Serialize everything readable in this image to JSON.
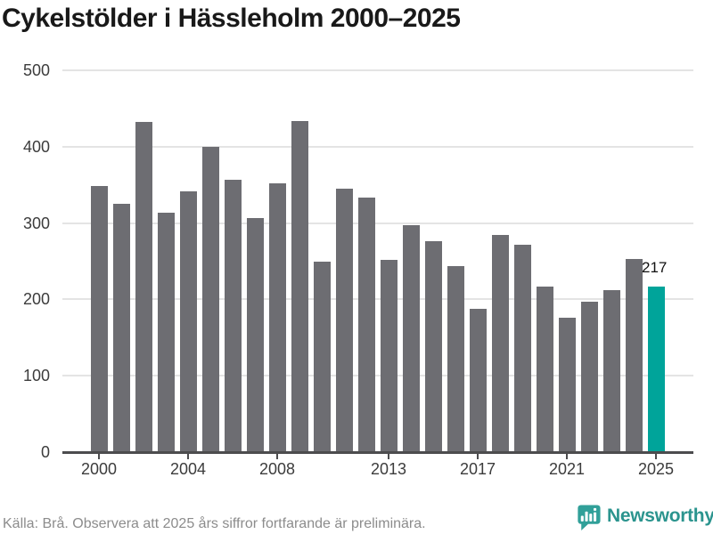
{
  "page": {
    "title": "Cykelstölder i Hässleholm 2000–2025",
    "footer": {
      "source": "Källa: Brå. Observera att 2025 års siffror fortfarande är preliminära.",
      "brand": "Newsworthy"
    }
  },
  "chart_data": {
    "type": "bar",
    "title": "Cykelstölder i Hässleholm 2000–2025",
    "categories": [
      2000,
      2001,
      2002,
      2003,
      2004,
      2005,
      2006,
      2007,
      2008,
      2009,
      2010,
      2011,
      2012,
      2013,
      2014,
      2015,
      2016,
      2017,
      2018,
      2019,
      2020,
      2021,
      2022,
      2023,
      2024,
      2025
    ],
    "values": [
      349,
      325,
      432,
      313,
      342,
      400,
      357,
      306,
      352,
      433,
      249,
      345,
      333,
      252,
      297,
      276,
      244,
      188,
      284,
      272,
      217,
      176,
      197,
      212,
      253,
      217
    ],
    "ylim": [
      0,
      500
    ],
    "yticks": [
      0,
      100,
      200,
      300,
      400,
      500
    ],
    "xtick_labels": [
      "2000",
      "2004",
      "2008",
      "2013",
      "2017",
      "2021",
      "2025"
    ],
    "grid": "horizontal",
    "legend": "none",
    "bar_color": "#6d6d72",
    "highlight_color": "#00a49a",
    "highlight_index": 25,
    "annotation": {
      "index": 25,
      "text": "217"
    },
    "grid_color": "#e4e4e4",
    "axis_color": "#4c4c4e"
  }
}
